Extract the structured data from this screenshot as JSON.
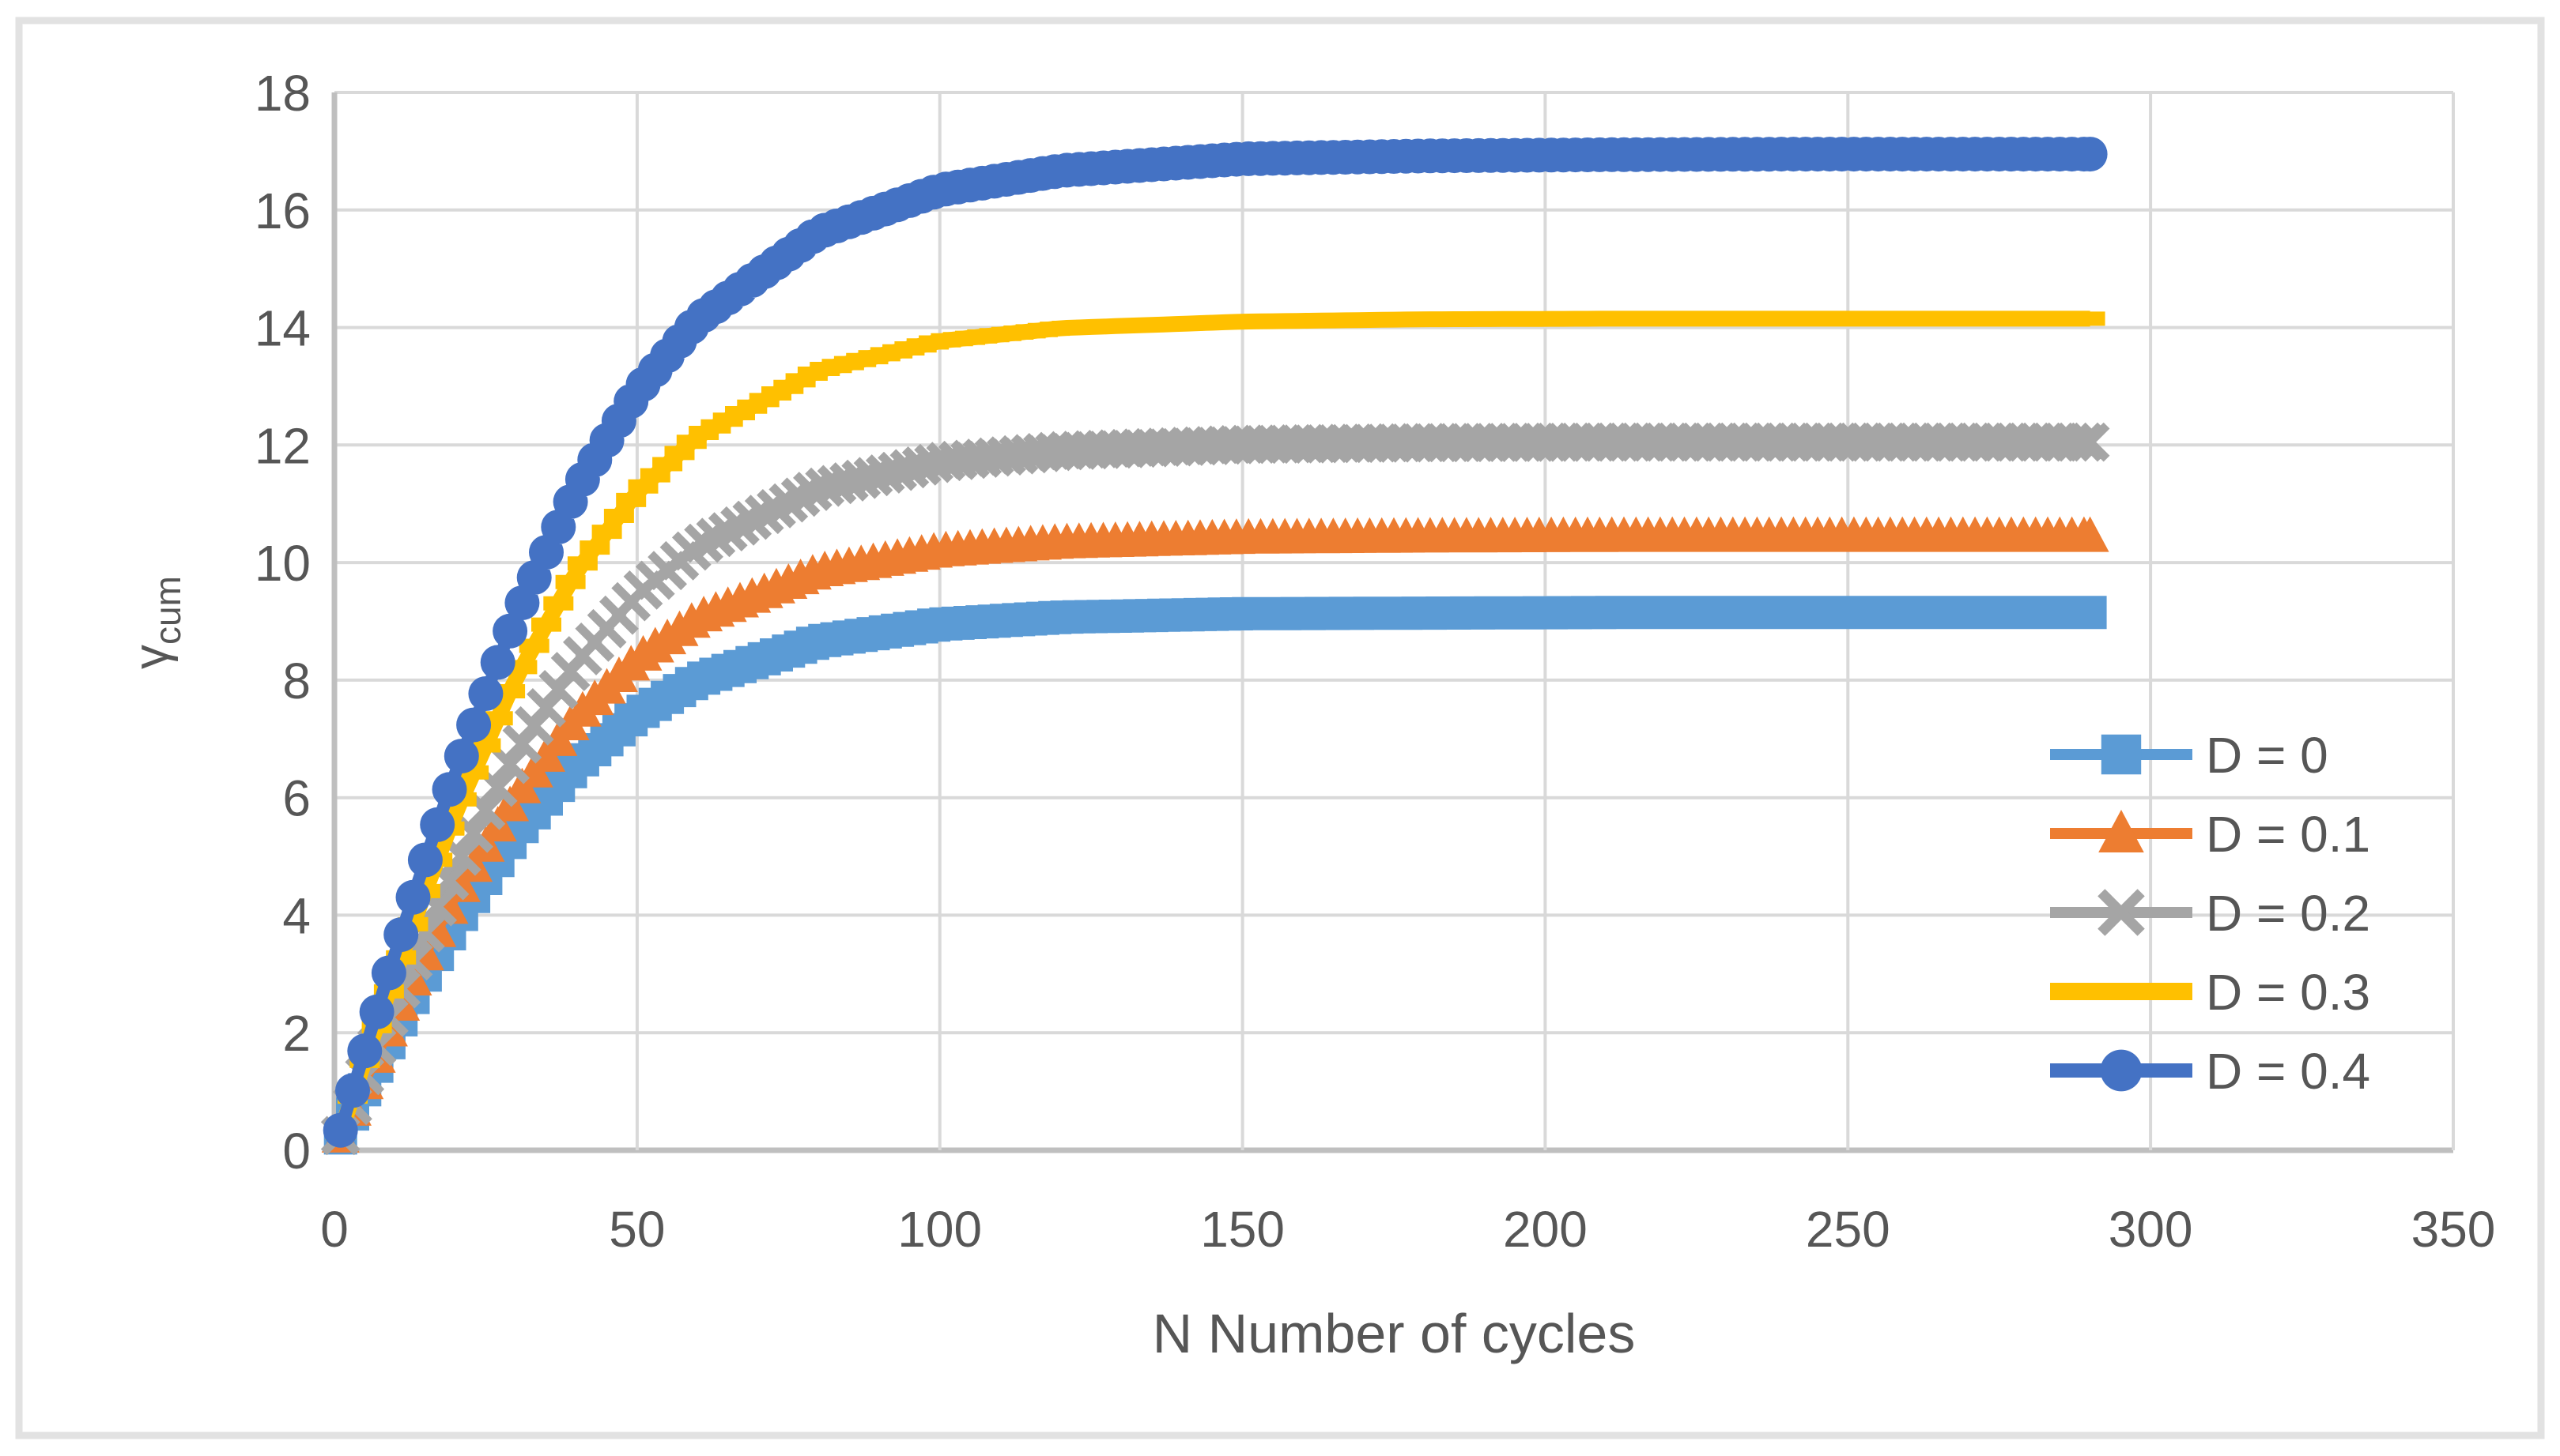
{
  "chart_data": {
    "type": "line",
    "title": "",
    "xlabel": "N Number of cycles",
    "ylabel": "γ",
    "ylabel_subscript": "cum",
    "xlim": [
      0,
      350
    ],
    "ylim": [
      0,
      18
    ],
    "x_ticks": [
      0,
      50,
      100,
      150,
      200,
      250,
      300,
      350
    ],
    "y_ticks": [
      0,
      2,
      4,
      6,
      8,
      10,
      12,
      14,
      16,
      18
    ],
    "grid": true,
    "legend_position": "inside-right",
    "x_end": 290,
    "x": [
      1,
      2,
      5,
      10,
      15,
      20,
      30,
      40,
      50,
      60,
      80,
      100,
      120,
      150,
      180,
      210,
      240,
      270,
      290
    ],
    "series": [
      {
        "name": "D = 0",
        "color": "#5B9BD5",
        "marker": "square",
        "line_width": 12,
        "values": [
          0.21,
          0.41,
          1.03,
          2.03,
          2.98,
          3.86,
          5.39,
          6.56,
          7.41,
          8.0,
          8.66,
          8.95,
          9.07,
          9.13,
          9.14,
          9.15,
          9.15,
          9.15,
          9.15
        ]
      },
      {
        "name": "D = 0.1",
        "color": "#ED7D31",
        "marker": "triangle",
        "line_width": 12,
        "values": [
          0.23,
          0.46,
          1.14,
          2.26,
          3.33,
          4.32,
          6.04,
          7.38,
          8.36,
          9.06,
          9.85,
          10.2,
          10.34,
          10.42,
          10.44,
          10.45,
          10.45,
          10.45,
          10.45
        ]
      },
      {
        "name": "D = 0.2",
        "color": "#A5A5A5",
        "marker": "x",
        "line_width": 12,
        "values": [
          0.25,
          0.51,
          1.27,
          2.51,
          3.7,
          4.81,
          6.76,
          8.3,
          9.45,
          10.28,
          11.26,
          11.71,
          11.9,
          12.01,
          12.04,
          12.05,
          12.05,
          12.05,
          12.05
        ]
      },
      {
        "name": "D = 0.3",
        "color": "#FFC000",
        "marker": "dash",
        "line_width": 20,
        "values": [
          0.3,
          0.61,
          1.52,
          3.0,
          4.41,
          5.74,
          8.04,
          9.85,
          11.2,
          12.15,
          13.27,
          13.77,
          13.99,
          14.1,
          14.14,
          14.15,
          14.15,
          14.15,
          14.15
        ]
      },
      {
        "name": "D = 0.4",
        "color": "#4472C4",
        "marker": "circle",
        "line_width": 16,
        "values": [
          0.34,
          0.68,
          1.69,
          3.35,
          4.94,
          6.44,
          9.1,
          11.25,
          12.91,
          14.13,
          15.62,
          16.34,
          16.67,
          16.87,
          16.92,
          16.94,
          16.95,
          16.95,
          16.95
        ]
      }
    ]
  },
  "colors": {
    "grid": "#D9D9D9",
    "axis": "#BFBFBF",
    "text": "#565656",
    "figure_border": "#E2E2E2",
    "background": "#FFFFFF"
  }
}
